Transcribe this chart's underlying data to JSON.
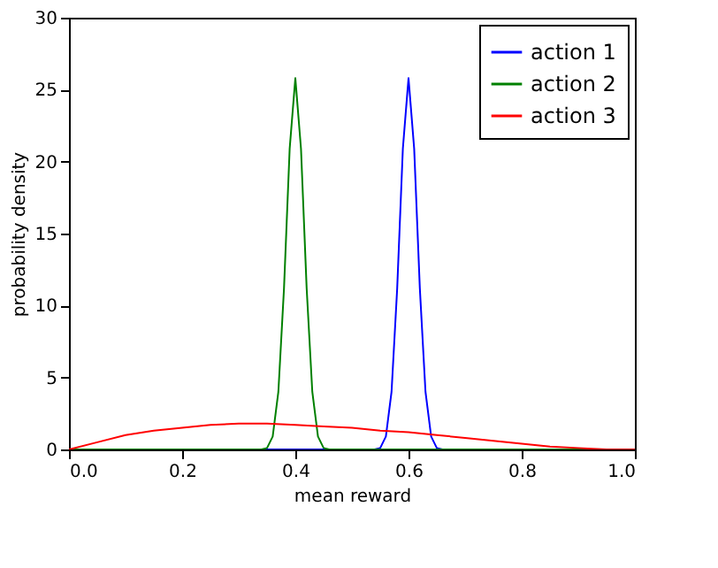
{
  "chart_data": {
    "type": "line",
    "xlabel": "mean reward",
    "ylabel": "probability density",
    "xlim": [
      0,
      1
    ],
    "ylim": [
      0,
      30
    ],
    "xticks": [
      {
        "value": 0,
        "label": "0.0"
      },
      {
        "value": 0.2,
        "label": "0.2"
      },
      {
        "value": 0.4,
        "label": "0.4"
      },
      {
        "value": 0.6,
        "label": "0.6"
      },
      {
        "value": 0.8,
        "label": "0.8"
      },
      {
        "value": 1,
        "label": "1.0"
      }
    ],
    "yticks": [
      0,
      5,
      10,
      15,
      20,
      25,
      30
    ],
    "grid": false,
    "legend": "top right",
    "marker": "none",
    "line_style": "solid",
    "series": [
      {
        "name": "action 1",
        "color": "#0000ff",
        "x": [
          0,
          0.54,
          0.55,
          0.56,
          0.57,
          0.58,
          0.59,
          0.6,
          0.61,
          0.62,
          0.63,
          0.64,
          0.65,
          0.66,
          1
        ],
        "values": [
          0,
          0,
          0.1,
          0.9,
          4,
          11.2,
          20.9,
          25.8,
          20.9,
          11.2,
          4,
          0.9,
          0.1,
          0,
          0
        ]
      },
      {
        "name": "action 2",
        "color": "#008000",
        "x": [
          0,
          0.34,
          0.35,
          0.36,
          0.37,
          0.38,
          0.39,
          0.4,
          0.41,
          0.42,
          0.43,
          0.44,
          0.45,
          0.46,
          1
        ],
        "values": [
          0,
          0,
          0.1,
          0.9,
          4,
          11.2,
          20.9,
          25.8,
          20.9,
          11.2,
          4,
          0.9,
          0.1,
          0,
          0
        ]
      },
      {
        "name": "action 3",
        "color": "#ff0000",
        "x": [
          0,
          0.05,
          0.1,
          0.15,
          0.2,
          0.25,
          0.3,
          0.35,
          0.4,
          0.45,
          0.5,
          0.55,
          0.6,
          0.65,
          0.7,
          0.75,
          0.8,
          0.85,
          0.9,
          0.95,
          1
        ],
        "values": [
          0,
          0.5,
          1,
          1.3,
          1.5,
          1.7,
          1.8,
          1.8,
          1.7,
          1.6,
          1.5,
          1.3,
          1.2,
          1,
          0.8,
          0.6,
          0.4,
          0.2,
          0.1,
          0,
          0
        ]
      }
    ]
  }
}
